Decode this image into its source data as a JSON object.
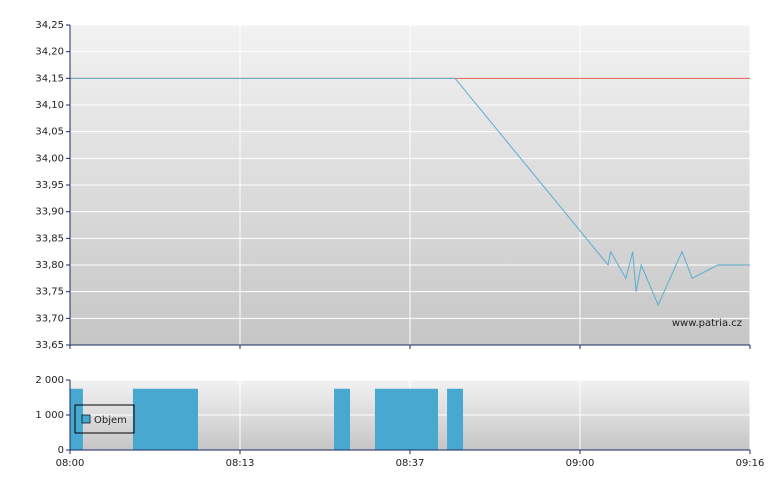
{
  "chart_data": [
    {
      "type": "line",
      "x": [
        0,
        2.265,
        3.165,
        3.18,
        3.27,
        3.31,
        3.33,
        3.36,
        3.46,
        3.6,
        3.66,
        3.81,
        4
      ],
      "values": [
        34.15,
        34.15,
        33.8,
        33.825,
        33.775,
        33.825,
        33.75,
        33.8,
        33.725,
        33.825,
        33.775,
        33.8,
        33.8
      ],
      "color": "#5aaed0",
      "reference_line": {
        "value": 34.15,
        "color": "#e0604e"
      },
      "xlim": [
        0,
        4
      ],
      "xticks": [
        0,
        1,
        2,
        3,
        4
      ],
      "ylim": [
        33.65,
        34.25
      ],
      "yticks": [
        {
          "value": 33.65,
          "label": "33,65"
        },
        {
          "value": 33.7,
          "label": "33,70"
        },
        {
          "value": 33.75,
          "label": "33,75"
        },
        {
          "value": 33.8,
          "label": "33,80"
        },
        {
          "value": 33.85,
          "label": "33,85"
        },
        {
          "value": 33.9,
          "label": "33,90"
        },
        {
          "value": 33.95,
          "label": "33,95"
        },
        {
          "value": 34.0,
          "label": "34,00"
        },
        {
          "value": 34.05,
          "label": "34,05"
        },
        {
          "value": 34.1,
          "label": "34,10"
        },
        {
          "value": 34.15,
          "label": "34,15"
        },
        {
          "value": 34.2,
          "label": "34,20"
        },
        {
          "value": 34.25,
          "label": "34,25"
        }
      ],
      "grid": true,
      "watermark": "www.patria.cz"
    },
    {
      "type": "bar",
      "series": [
        {
          "name": "Objem",
          "color": "#48a8d0",
          "x": [
            0,
            0.37,
            1.553,
            1.794,
            2.218
          ],
          "x_end": [
            0.076,
            0.753,
            1.647,
            2.165,
            2.312
          ],
          "values": [
            1750,
            1750,
            1750,
            1750,
            1750
          ]
        }
      ],
      "xlim": [
        0,
        4
      ],
      "xticks": [
        {
          "value": 0,
          "label": "08:00"
        },
        {
          "value": 1,
          "label": "08:13"
        },
        {
          "value": 2,
          "label": "08:37"
        },
        {
          "value": 3,
          "label": "09:00"
        },
        {
          "value": 4,
          "label": "09:16"
        }
      ],
      "ylim": [
        0,
        2000
      ],
      "yticks": [
        0,
        {
          "value": 1000,
          "label": "1 000"
        },
        {
          "value": 2000,
          "label": "2 000"
        }
      ],
      "grid": true,
      "legend": "left"
    }
  ]
}
